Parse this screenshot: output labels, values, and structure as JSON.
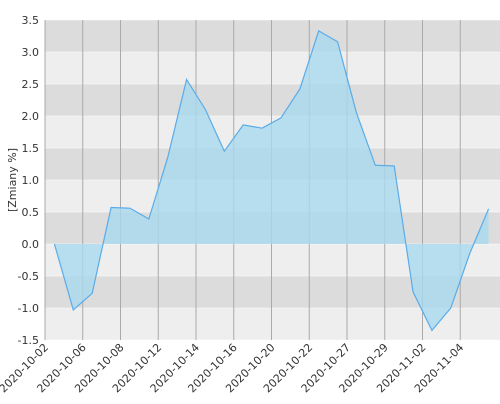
{
  "chart_data": {
    "type": "area",
    "y_label": "[Zmiany %]",
    "categories": [
      "2020-10-02",
      null,
      "2020-10-06",
      null,
      "2020-10-08",
      null,
      "2020-10-12",
      null,
      "2020-10-14",
      null,
      "2020-10-16",
      null,
      "2020-10-20",
      null,
      "2020-10-22",
      null,
      "2020-10-27",
      null,
      "2020-10-29",
      null,
      "2020-11-02",
      null,
      "2020-11-04",
      null
    ],
    "values": [
      0,
      -1.03,
      -0.77,
      0.57,
      0.56,
      0.39,
      1.35,
      2.57,
      2.1,
      1.45,
      1.86,
      1.81,
      1.97,
      2.42,
      3.33,
      3.16,
      2.05,
      1.23,
      1.22,
      -0.75,
      -1.35,
      -1.0,
      -0.15,
      0.55
    ],
    "color": "#5aabe8",
    "fill": "#a9d9ee",
    "ylim": [
      -1.5,
      3.5
    ],
    "yticks": [
      {
        "value": -1.5,
        "label": "-1.5"
      },
      {
        "value": -1,
        "label": "-1.0"
      },
      -0.5,
      {
        "value": 0,
        "label": "0.0"
      },
      0.5,
      {
        "value": 1,
        "label": "1.0"
      },
      1.5,
      {
        "value": 2,
        "label": "2.0"
      },
      2.5,
      {
        "value": 3,
        "label": "3.0"
      },
      3.5
    ],
    "grid": true
  }
}
